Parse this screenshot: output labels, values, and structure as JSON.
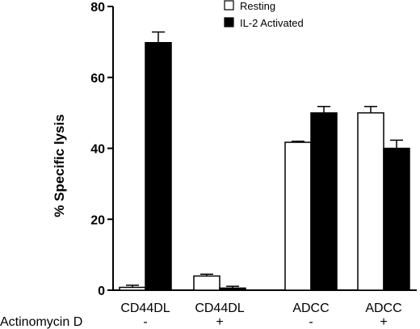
{
  "chart_data": {
    "type": "bar",
    "categories": [
      "CD44DL",
      "CD44DL",
      "ADCC",
      "ADCC"
    ],
    "treatment_label": "Actinomycin D",
    "treatment_values": [
      "-",
      "+",
      "-",
      "+"
    ],
    "series": [
      {
        "name": "Resting",
        "values": [
          0.8,
          4.0,
          41.7,
          50.0
        ],
        "errors": [
          0.6,
          0.5,
          0.3,
          1.8
        ],
        "color": "#ffffff"
      },
      {
        "name": "IL-2 Activated",
        "values": [
          69.8,
          0.6,
          50.0,
          40.0
        ],
        "errors": [
          3.0,
          0.5,
          1.8,
          2.3
        ],
        "color": "#000000"
      }
    ],
    "ylabel": "% Specific lysis",
    "ylim": [
      0,
      80
    ],
    "yticks": [
      0,
      20,
      40,
      60,
      80
    ],
    "legend_position": "top-right",
    "grid": false
  }
}
